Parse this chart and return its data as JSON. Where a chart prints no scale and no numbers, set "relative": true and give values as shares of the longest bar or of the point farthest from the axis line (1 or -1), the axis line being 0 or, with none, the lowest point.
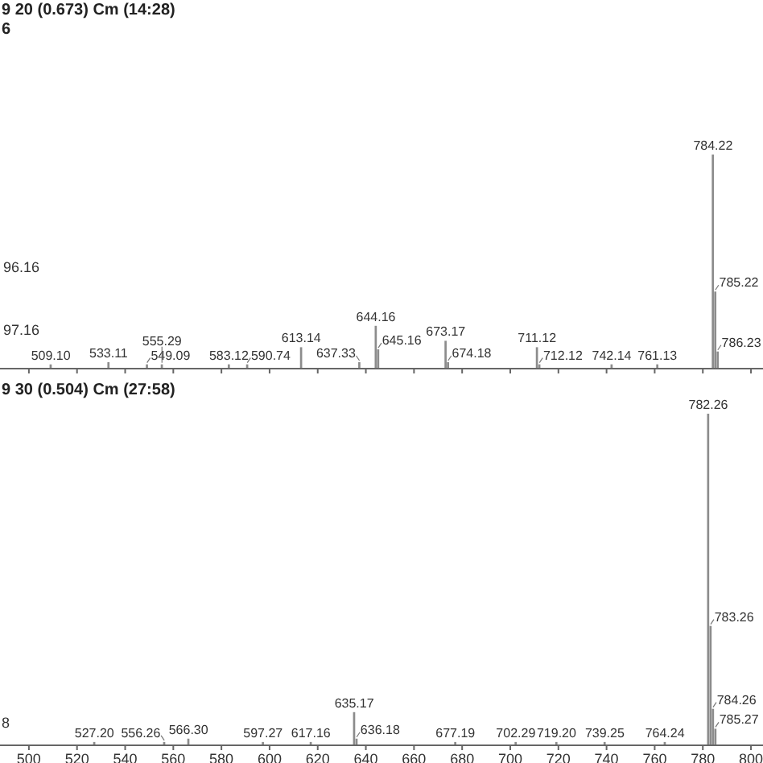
{
  "chart_data": [
    {
      "type": "bar",
      "title": "9 20 (0.673) Cm (14:28)",
      "subtitle": "6",
      "relative": true,
      "tick_labels": false,
      "x": [
        509.1,
        533.11,
        549.09,
        555.29,
        583.12,
        590.74,
        613.14,
        637.33,
        644.16,
        645.16,
        673.17,
        674.18,
        711.12,
        712.12,
        742.14,
        761.13,
        784.22,
        785.22,
        786.23
      ],
      "series": [
        {
          "color": "#8c8c8c",
          "values": [
            0.02,
            0.03,
            0.02,
            0.02,
            0.02,
            0.02,
            0.1,
            0.03,
            0.2,
            0.09,
            0.13,
            0.03,
            0.1,
            0.02,
            0.02,
            0.02,
            1,
            0.36,
            0.08
          ]
        }
      ],
      "xlim": [
        488,
        805
      ],
      "xticks": [
        500,
        520,
        540,
        560,
        580,
        600,
        620,
        640,
        660,
        680,
        700,
        720,
        740,
        760,
        780,
        800
      ],
      "annotations": [
        "96.16",
        "97.16",
        {
          "text": "509.10",
          "x": 509.1,
          "y": 0.02
        },
        {
          "text": "533.11",
          "x": 533.11,
          "y": 0.03
        },
        {
          "text": "549.09",
          "x": 549.09,
          "y": 0.02
        },
        {
          "text": "555.29",
          "x": 555.29,
          "y": 0.02
        },
        {
          "text": "583.12",
          "x": 583.12,
          "y": 0.02
        },
        {
          "text": "590.74",
          "x": 590.74,
          "y": 0.02
        },
        {
          "text": "613.14",
          "x": 613.14,
          "y": 0.1
        },
        {
          "text": "637.33",
          "x": 637.33,
          "y": 0.03
        },
        {
          "text": "644.16",
          "x": 644.16,
          "y": 0.2
        },
        {
          "text": "645.16",
          "x": 645.16,
          "y": 0.09
        },
        {
          "text": "673.17",
          "x": 673.17,
          "y": 0.13
        },
        {
          "text": "674.18",
          "x": 674.18,
          "y": 0.03
        },
        {
          "text": "711.12",
          "x": 711.12,
          "y": 0.1
        },
        {
          "text": "712.12",
          "x": 712.12,
          "y": 0.02
        },
        {
          "text": "742.14",
          "x": 742.14,
          "y": 0.02
        },
        {
          "text": "761.13",
          "x": 761.13,
          "y": 0.02
        },
        {
          "text": "784.22",
          "x": 784.22,
          "y": 1
        },
        {
          "text": "785.22",
          "x": 785.22,
          "y": 0.36
        },
        {
          "text": "786.23",
          "x": 786.23,
          "y": 0.08
        }
      ]
    },
    {
      "type": "bar",
      "title": "9 30 (0.504) Cm (27:58)",
      "relative": true,
      "x": [
        527.2,
        556.26,
        566.3,
        597.27,
        617.16,
        635.17,
        636.18,
        677.19,
        702.29,
        719.2,
        739.25,
        764.24,
        782.26,
        783.26,
        784.26,
        785.27
      ],
      "series": [
        {
          "color": "#8c8c8c",
          "values": [
            0.01,
            0.01,
            0.02,
            0.01,
            0.01,
            0.1,
            0.02,
            0.01,
            0.01,
            0.01,
            0.01,
            0.01,
            1,
            0.36,
            0.11,
            0.05
          ]
        }
      ],
      "xlim": [
        488,
        805
      ],
      "xticks": [
        500,
        520,
        540,
        560,
        580,
        600,
        620,
        640,
        660,
        680,
        700,
        720,
        740,
        760,
        780,
        800
      ],
      "annotations": [
        "8",
        {
          "text": "527.20",
          "x": 527.2,
          "y": 0.01
        },
        {
          "text": "556.26",
          "x": 556.26,
          "y": 0.01
        },
        {
          "text": "566.30",
          "x": 566.3,
          "y": 0.02
        },
        {
          "text": "597.27",
          "x": 597.27,
          "y": 0.01
        },
        {
          "text": "617.16",
          "x": 617.16,
          "y": 0.01
        },
        {
          "text": "635.17",
          "x": 635.17,
          "y": 0.1
        },
        {
          "text": "636.18",
          "x": 636.18,
          "y": 0.02
        },
        {
          "text": "677.19",
          "x": 677.19,
          "y": 0.01
        },
        {
          "text": "702.29",
          "x": 702.29,
          "y": 0.01
        },
        {
          "text": "719.20",
          "x": 719.2,
          "y": 0.01
        },
        {
          "text": "739.25",
          "x": 739.25,
          "y": 0.01
        },
        {
          "text": "764.24",
          "x": 764.24,
          "y": 0.01
        },
        {
          "text": "782.26",
          "x": 782.26,
          "y": 1
        },
        {
          "text": "783.26",
          "x": 783.26,
          "y": 0.36
        },
        {
          "text": "784.26",
          "x": 784.26,
          "y": 0.11
        },
        {
          "text": "785.27",
          "x": 785.27,
          "y": 0.05
        }
      ]
    }
  ]
}
